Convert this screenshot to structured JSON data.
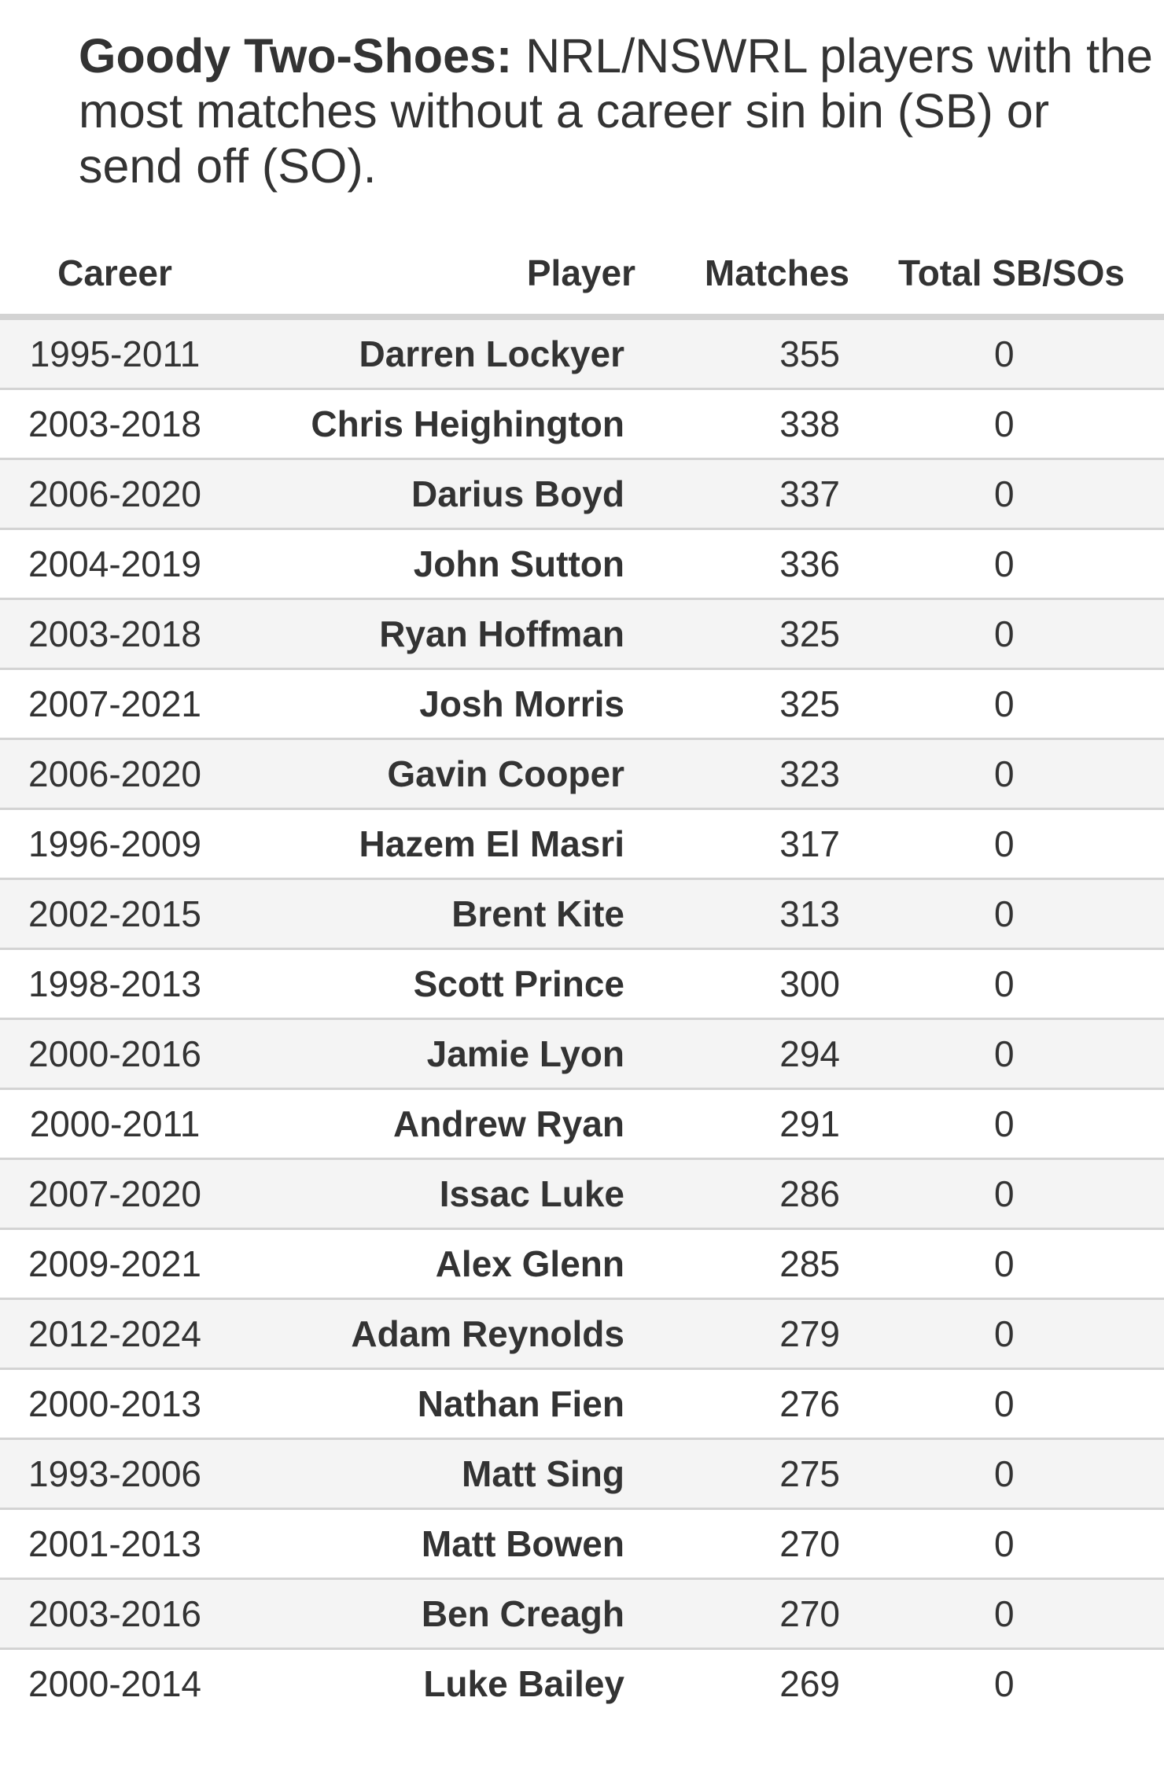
{
  "chart_data": {
    "type": "table",
    "title_bold": "Goody Two-Shoes:",
    "title_rest": " NRL/NSWRL players with the most matches without a career sin bin (SB) or send off (SO).",
    "columns": [
      "Career",
      "Player",
      "Matches",
      "Total SB/SOs"
    ],
    "rows": [
      {
        "career": "1995-2011",
        "player": "Darren Lockyer",
        "matches": "355",
        "total": "0"
      },
      {
        "career": "2003-2018",
        "player": "Chris Heighington",
        "matches": "338",
        "total": "0"
      },
      {
        "career": "2006-2020",
        "player": "Darius Boyd",
        "matches": "337",
        "total": "0"
      },
      {
        "career": "2004-2019",
        "player": "John Sutton",
        "matches": "336",
        "total": "0"
      },
      {
        "career": "2003-2018",
        "player": "Ryan Hoffman",
        "matches": "325",
        "total": "0"
      },
      {
        "career": "2007-2021",
        "player": "Josh Morris",
        "matches": "325",
        "total": "0"
      },
      {
        "career": "2006-2020",
        "player": "Gavin Cooper",
        "matches": "323",
        "total": "0"
      },
      {
        "career": "1996-2009",
        "player": "Hazem El Masri",
        "matches": "317",
        "total": "0"
      },
      {
        "career": "2002-2015",
        "player": "Brent Kite",
        "matches": "313",
        "total": "0"
      },
      {
        "career": "1998-2013",
        "player": "Scott Prince",
        "matches": "300",
        "total": "0"
      },
      {
        "career": "2000-2016",
        "player": "Jamie Lyon",
        "matches": "294",
        "total": "0"
      },
      {
        "career": "2000-2011",
        "player": "Andrew Ryan",
        "matches": "291",
        "total": "0"
      },
      {
        "career": "2007-2020",
        "player": "Issac Luke",
        "matches": "286",
        "total": "0"
      },
      {
        "career": "2009-2021",
        "player": "Alex Glenn",
        "matches": "285",
        "total": "0"
      },
      {
        "career": "2012-2024",
        "player": "Adam Reynolds",
        "matches": "279",
        "total": "0"
      },
      {
        "career": "2000-2013",
        "player": "Nathan Fien",
        "matches": "276",
        "total": "0"
      },
      {
        "career": "1993-2006",
        "player": "Matt Sing",
        "matches": "275",
        "total": "0"
      },
      {
        "career": "2001-2013",
        "player": "Matt Bowen",
        "matches": "270",
        "total": "0"
      },
      {
        "career": "2003-2016",
        "player": "Ben Creagh",
        "matches": "270",
        "total": "0"
      },
      {
        "career": "2000-2014",
        "player": "Luke Bailey",
        "matches": "269",
        "total": "0"
      }
    ],
    "colors": {
      "text": "#333333",
      "stripe": "#f4f4f4",
      "rule": "#d3d3d3"
    }
  }
}
